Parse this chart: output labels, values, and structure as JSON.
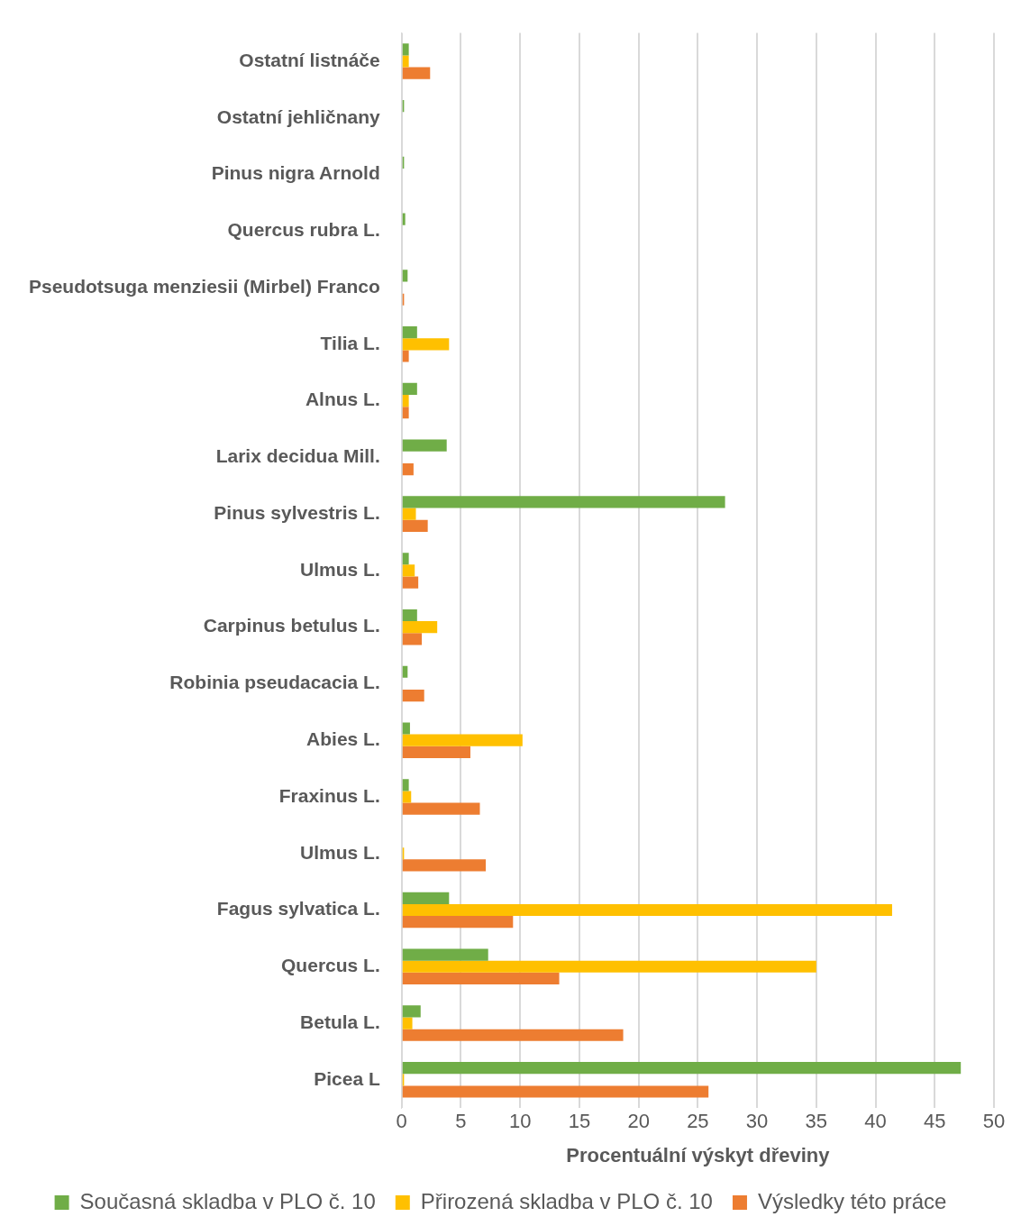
{
  "chart_data": {
    "type": "bar",
    "orientation": "horizontal",
    "xlabel": "Procentuální výskyt dřeviny",
    "categories": [
      "Ostatní listnáče",
      "Ostatní jehličnany",
      "Pinus nigra Arnold",
      "Quercus rubra L.",
      "Pseudotsuga menziesii (Mirbel) Franco",
      "Tilia L.",
      "Alnus L.",
      "Larix decidua Mill.",
      "Pinus sylvestris L.",
      "Ulmus L.",
      "Carpinus betulus L.",
      "Robinia pseudacacia L.",
      "Abies L.",
      "Fraxinus L.",
      "Ulmus L.",
      "Fagus sylvatica L.",
      "Quercus L.",
      "Betula L.",
      "Picea L"
    ],
    "series": [
      {
        "name": "Současná skladba v PLO č. 10",
        "color": "#70ad47",
        "values": [
          0.6,
          0.2,
          0.2,
          0.3,
          0.5,
          1.3,
          1.3,
          3.8,
          27.3,
          0.6,
          1.3,
          0.5,
          0.7,
          0.6,
          null,
          4.0,
          7.3,
          1.6,
          47.2
        ]
      },
      {
        "name": "Přirozená skladba v PLO č. 10",
        "color": "#ffc000",
        "values": [
          0.6,
          null,
          null,
          null,
          null,
          4.0,
          0.6,
          null,
          1.2,
          1.1,
          3.0,
          null,
          10.2,
          0.8,
          0.2,
          41.4,
          35.0,
          0.9,
          0.2
        ]
      },
      {
        "name": "Výsledky této práce",
        "color": "#ed7d31",
        "values": [
          2.4,
          null,
          null,
          null,
          0.2,
          0.6,
          0.6,
          1.0,
          2.2,
          1.4,
          1.7,
          1.9,
          5.8,
          6.6,
          7.1,
          9.4,
          13.3,
          18.7,
          25.9
        ]
      }
    ],
    "xlim": [
      0,
      50
    ],
    "xticks": [
      0,
      5,
      10,
      15,
      20,
      25,
      30,
      35,
      40,
      45,
      50
    ],
    "grid": "x",
    "legend": "bottom"
  }
}
